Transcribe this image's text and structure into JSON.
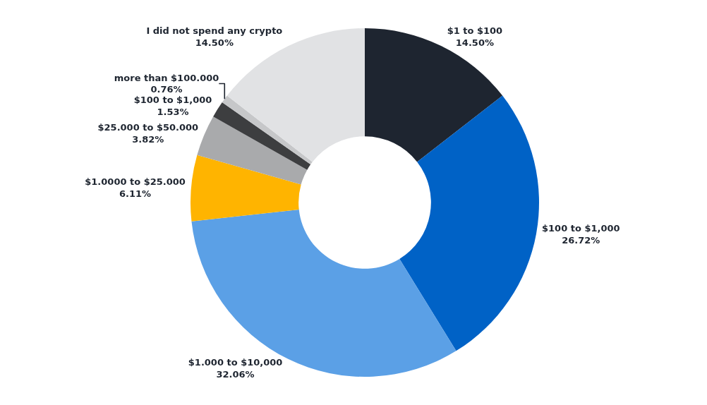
{
  "chart_data": {
    "type": "donut",
    "categories": [
      "$1 to $100",
      "$100 to $1,000",
      "$1.000 to $10,000",
      "$1.0000 to $25.000",
      "$25.000 to $50.000",
      "$100 to $1,000",
      "more than $100.000",
      "I did not spend any crypto"
    ],
    "values": [
      14.5,
      26.72,
      32.06,
      6.11,
      3.82,
      1.53,
      0.76,
      14.5
    ],
    "value_labels": [
      "14.50%",
      "26.72%",
      "32.06%",
      "6.11%",
      "3.82%",
      "1.53%",
      "0.76%",
      "14.50%"
    ],
    "colors": [
      "#1e2530",
      "#0062c6",
      "#5ba0e6",
      "#ffb400",
      "#a9aaac",
      "#3d3e40",
      "#c6c7c9",
      "#e1e2e4"
    ]
  }
}
